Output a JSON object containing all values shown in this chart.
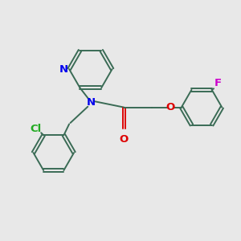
{
  "bg_color": "#e8e8e8",
  "bond_color": "#3a6b55",
  "n_color": "#0000ee",
  "o_color": "#dd0000",
  "cl_color": "#22aa22",
  "f_color": "#cc00cc",
  "line_width": 1.4,
  "font_size": 9.5,
  "fig_width": 3.0,
  "fig_height": 3.0,
  "dpi": 100,
  "xlim": [
    0,
    10
  ],
  "ylim": [
    0,
    10
  ]
}
